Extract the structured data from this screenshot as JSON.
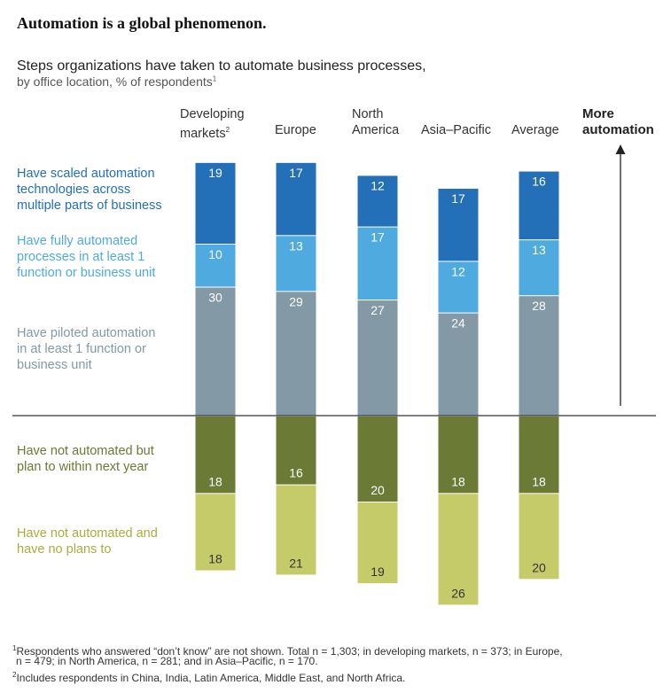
{
  "headline": "Automation is a global phenomenon.",
  "subtitle": "Steps organizations have taken to automate business processes,",
  "subtitle2": "by office location, % of respondents",
  "subtitle2_sup": "1",
  "more_automation": [
    "More",
    "automation"
  ],
  "colors": {
    "scaled": "#2370b8",
    "fully": "#4eaadf",
    "piloted": "#8399a5",
    "plan": "#6b7a35",
    "noplans": "#c6cb6a",
    "axis": "#333333"
  },
  "legend": {
    "scaled": [
      "Have scaled automation",
      "technologies across",
      "multiple parts of business"
    ],
    "fully": [
      "Have fully automated",
      "processes in at least 1",
      "function or business unit"
    ],
    "piloted": [
      "Have piloted automation",
      "in at least 1 function or",
      "business unit"
    ],
    "plan": [
      "Have not automated but",
      "plan to within next year"
    ],
    "noplans": [
      "Have not automated and",
      "have no plans to"
    ]
  },
  "chart_data": {
    "type": "bar",
    "stacked": true,
    "diverging": true,
    "categories": [
      "Developing markets",
      "Europe",
      "North America",
      "Asia–Pacific",
      "Average"
    ],
    "category_labels": [
      [
        "Developing",
        "markets"
      ],
      [
        "Europe"
      ],
      [
        "North",
        "America"
      ],
      [
        "Asia–Pacific"
      ],
      [
        "Average"
      ]
    ],
    "category_sup": [
      "2",
      "",
      "",
      "",
      ""
    ],
    "series": [
      {
        "name": "Have scaled automation technologies across multiple parts of business",
        "key": "scaled",
        "direction": "up",
        "values": [
          19,
          17,
          12,
          17,
          16
        ]
      },
      {
        "name": "Have fully automated processes in at least 1 function or business unit",
        "key": "fully",
        "direction": "up",
        "values": [
          10,
          13,
          17,
          12,
          13
        ]
      },
      {
        "name": "Have piloted automation in at least 1 function or business unit",
        "key": "piloted",
        "direction": "up",
        "values": [
          30,
          29,
          27,
          24,
          28
        ]
      },
      {
        "name": "Have not automated but plan to within next year",
        "key": "plan",
        "direction": "down",
        "values": [
          18,
          16,
          20,
          18,
          18
        ]
      },
      {
        "name": "Have not automated and have no plans to",
        "key": "noplans",
        "direction": "down",
        "values": [
          18,
          21,
          19,
          26,
          20
        ]
      }
    ],
    "ylabel": "% of respondents",
    "annotation": "More automation"
  },
  "footnotes": [
    "Respondents who answered “don’t know” are not shown. Total n = 1,303; in developing markets, n = 373; in Europe,",
    "n = 479; in North America, n = 281; and in Asia–Pacific, n = 170.",
    "Includes respondents in China, India, Latin America, Middle East, and North Africa."
  ],
  "footnote_sups": [
    "1",
    "2"
  ]
}
